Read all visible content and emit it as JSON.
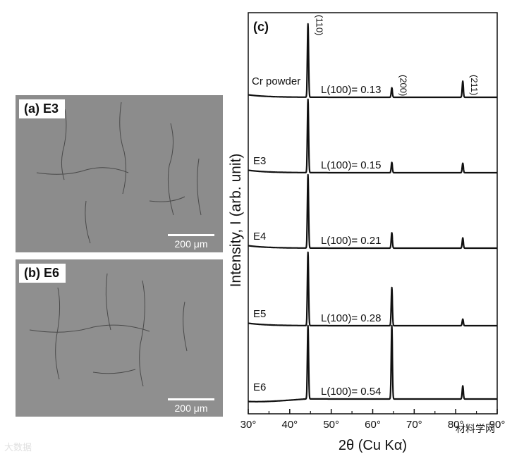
{
  "micrographs": [
    {
      "label": "(a) E3",
      "scale": "200 μm"
    },
    {
      "label": "(b) E6",
      "scale": "200 μm"
    }
  ],
  "watermarks": {
    "left": "大数据",
    "right": "材料学网"
  },
  "chart_data": {
    "type": "line",
    "panel_label": "(c)",
    "xlabel": "2θ (Cu Kα)",
    "ylabel": "Intensity, I (arb. unit)",
    "xlim": [
      30,
      90
    ],
    "x_ticks": [
      "30°",
      "40°",
      "50°",
      "60°",
      "70°",
      "80°",
      "90°"
    ],
    "peak_labels": [
      {
        "text": "(110)",
        "x": 44.4
      },
      {
        "text": "(200)",
        "x": 64.6
      },
      {
        "text": "(211)",
        "x": 81.7
      }
    ],
    "series": [
      {
        "name": "Cr powder",
        "annotation": "L(100)= 0.13",
        "peaks": [
          {
            "x": 44.4,
            "y": 100
          },
          {
            "x": 64.6,
            "y": 13
          },
          {
            "x": 81.7,
            "y": 22
          }
        ]
      },
      {
        "name": "E3",
        "annotation": "L(100)= 0.15",
        "peaks": [
          {
            "x": 44.4,
            "y": 100
          },
          {
            "x": 64.6,
            "y": 14
          },
          {
            "x": 81.7,
            "y": 13
          }
        ]
      },
      {
        "name": "E4",
        "annotation": "L(100)= 0.21",
        "peaks": [
          {
            "x": 44.4,
            "y": 100
          },
          {
            "x": 64.6,
            "y": 21
          },
          {
            "x": 81.7,
            "y": 14
          }
        ]
      },
      {
        "name": "E5",
        "annotation": "L(100)= 0.28",
        "peaks": [
          {
            "x": 44.4,
            "y": 100
          },
          {
            "x": 64.6,
            "y": 52
          },
          {
            "x": 81.7,
            "y": 9
          }
        ]
      },
      {
        "name": "E6",
        "annotation": "L(100)= 0.54",
        "peaks": [
          {
            "x": 44.4,
            "y": 100
          },
          {
            "x": 64.6,
            "y": 100
          },
          {
            "x": 81.7,
            "y": 18
          }
        ]
      }
    ]
  }
}
